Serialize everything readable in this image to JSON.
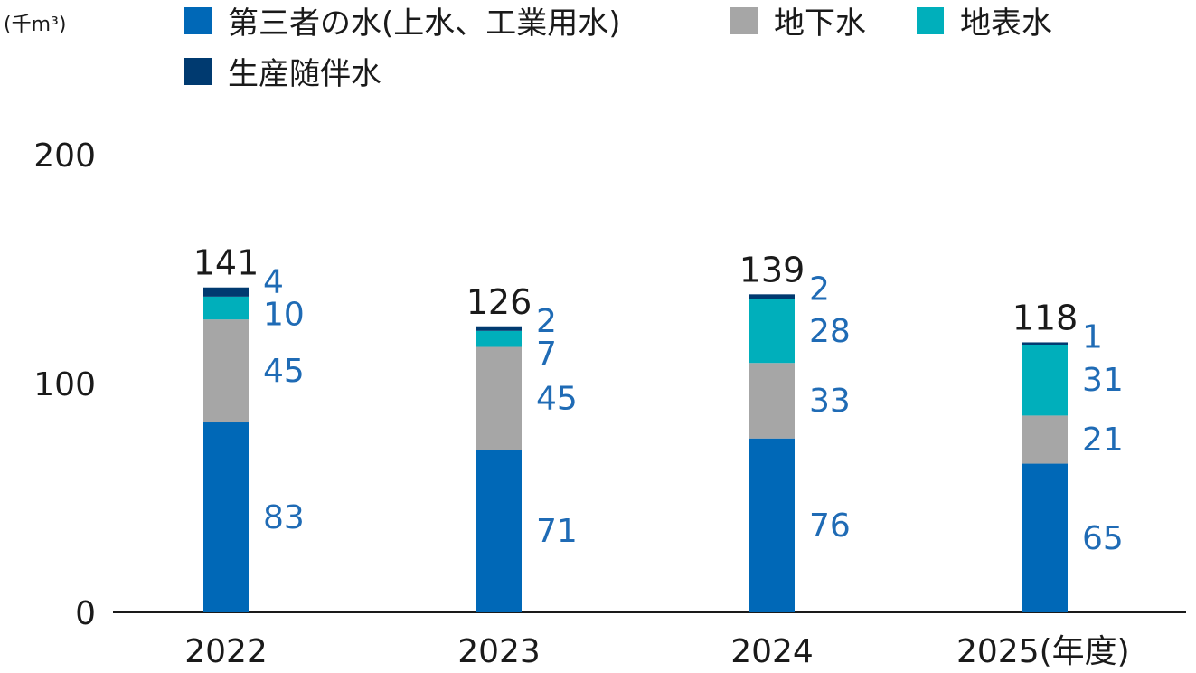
{
  "chart_data": {
    "type": "bar",
    "stacked": true,
    "unit_label": "(千m³)",
    "categories": [
      "2022",
      "2023",
      "2024",
      "2025"
    ],
    "x_tick_labels": [
      "2022",
      "2023",
      "2024",
      "2025(年度)"
    ],
    "y_ticks": [
      0,
      100,
      200
    ],
    "ylim": [
      0,
      200
    ],
    "grid": false,
    "legend_position": "top",
    "series": [
      {
        "name": "第三者の水(上水、工業用水)",
        "color": "#0068b7",
        "values": [
          83,
          71,
          76,
          65
        ]
      },
      {
        "name": "地下水",
        "color": "#a6a6a6",
        "values": [
          45,
          45,
          33,
          21
        ]
      },
      {
        "name": "地表水",
        "color": "#00afbb",
        "values": [
          10,
          7,
          28,
          31
        ]
      },
      {
        "name": "生産随伴水",
        "color": "#003a70",
        "values": [
          4,
          2,
          2,
          1
        ]
      }
    ],
    "totals": [
      141,
      126,
      139,
      118
    ]
  }
}
